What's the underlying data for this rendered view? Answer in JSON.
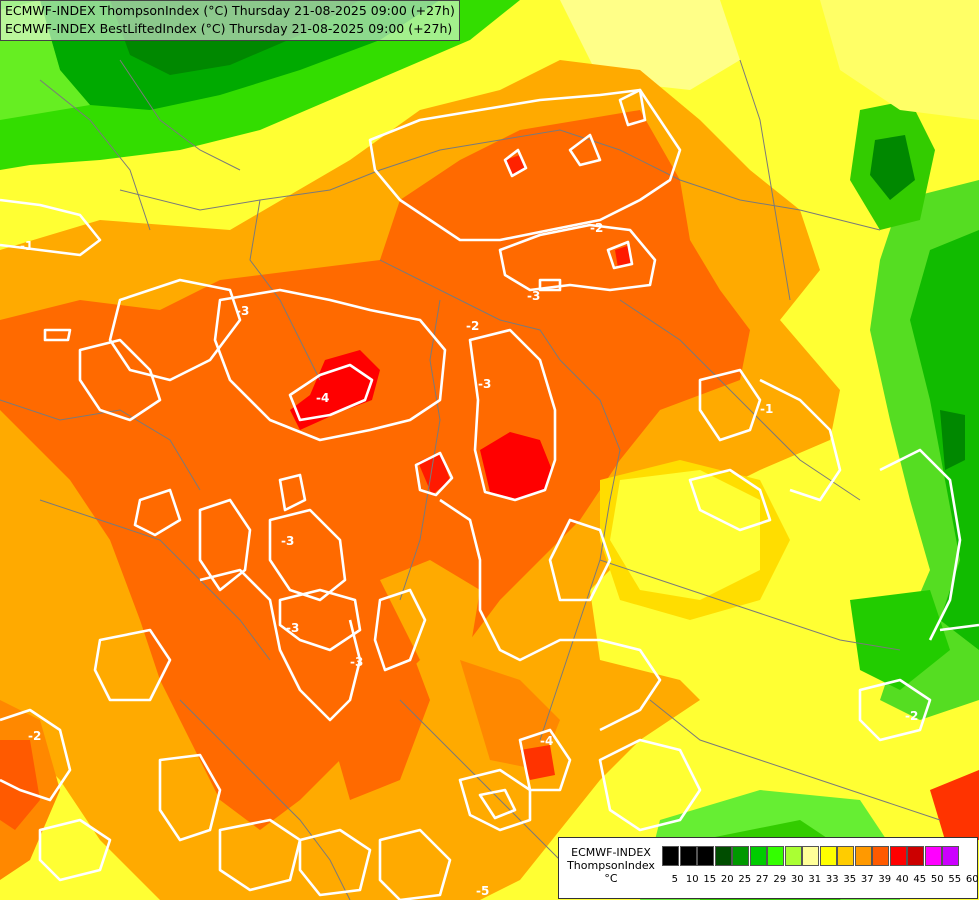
{
  "titles": {
    "line1": "ECMWF-INDEX ThompsonIndex (°C) Thursday 21-08-2025 09:00 (+27h)",
    "line2": "ECMWF-INDEX BestLiftedIndex (°C) Thursday 21-08-2025 09:00 (+27h)"
  },
  "legend": {
    "source": "ECMWF-INDEX",
    "field": "ThompsonIndex",
    "unit": "°C",
    "ticks": [
      "5",
      "10",
      "15",
      "20",
      "25",
      "27",
      "29",
      "30",
      "31",
      "33",
      "35",
      "37",
      "39",
      "40",
      "45",
      "50",
      "55",
      "60"
    ],
    "colors": [
      "#000000",
      "#000000",
      "#000000",
      "#004d00",
      "#009900",
      "#00cc00",
      "#33ff00",
      "#aaff33",
      "#ffff99",
      "#ffff00",
      "#ffcc00",
      "#ff9900",
      "#ff5a00",
      "#ff0000",
      "#cc0000",
      "#ff00ff",
      "#cc00ff",
      "#9900ff",
      "#3300ff",
      "#0000ff"
    ]
  },
  "contour_labels": [
    "-1",
    "-2",
    "-2",
    "-2",
    "-3",
    "-3",
    "-3",
    "-3",
    "-3",
    "-3",
    "-4",
    "-4",
    "-5",
    "-2",
    "-1"
  ]
}
